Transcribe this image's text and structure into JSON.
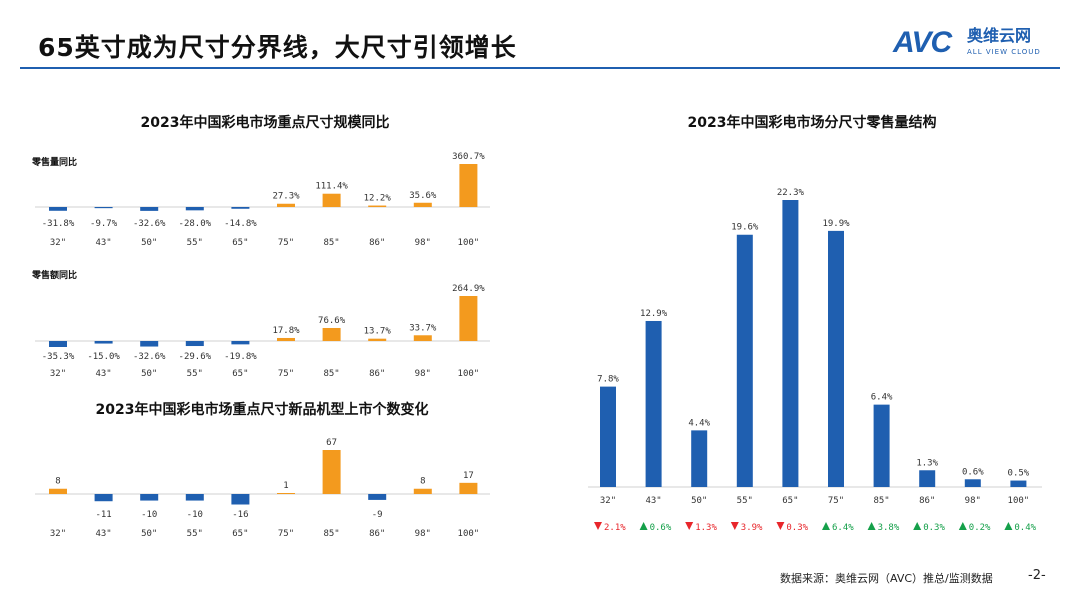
{
  "header": {
    "title": "65英寸成为尺寸分界线，大尺寸引领增长",
    "logo_mark": "AVC",
    "logo_cn": "奥维云网",
    "logo_en": "ALL VIEW CLOUD",
    "accent": "#1f5fb0"
  },
  "colors": {
    "negative_bar": "#1f5fb0",
    "positive_bar": "#f39a1e",
    "down": "#e8262b",
    "up": "#15a04a"
  },
  "chart_data": [
    {
      "type": "bar",
      "title": "2023年中国彩电市场重点尺寸规模同比",
      "subtitle": "零售量同比",
      "categories": [
        "32\"",
        "43\"",
        "50\"",
        "55\"",
        "65\"",
        "75\"",
        "85\"",
        "86\"",
        "98\"",
        "100\""
      ],
      "values": [
        -31.8,
        -9.7,
        -32.6,
        -28.0,
        -14.8,
        27.3,
        111.4,
        12.2,
        35.6,
        360.7
      ],
      "labels": [
        "-31.8%",
        "-9.7%",
        "-32.6%",
        "-28.0%",
        "-14.8%",
        "27.3%",
        "111.4%",
        "12.2%",
        "35.6%",
        "360.7%"
      ]
    },
    {
      "type": "bar",
      "subtitle": "零售额同比",
      "categories": [
        "32\"",
        "43\"",
        "50\"",
        "55\"",
        "65\"",
        "75\"",
        "85\"",
        "86\"",
        "98\"",
        "100\""
      ],
      "values": [
        -35.3,
        -15.0,
        -32.6,
        -29.6,
        -19.8,
        17.8,
        76.6,
        13.7,
        33.7,
        264.9
      ],
      "labels": [
        "-35.3%",
        "-15.0%",
        "-32.6%",
        "-29.6%",
        "-19.8%",
        "17.8%",
        "76.6%",
        "13.7%",
        "33.7%",
        "264.9%"
      ]
    },
    {
      "type": "bar",
      "title": "2023年中国彩电市场重点尺寸新品机型上市个数变化",
      "categories": [
        "32\"",
        "43\"",
        "50\"",
        "55\"",
        "65\"",
        "75\"",
        "85\"",
        "86\"",
        "98\"",
        "100\""
      ],
      "values": [
        8,
        -11,
        -10,
        -10,
        -16,
        1,
        67,
        -9,
        8,
        17
      ],
      "labels": [
        "8",
        "-11",
        "-10",
        "-10",
        "-16",
        "1",
        "67",
        "-9",
        "8",
        "17"
      ]
    },
    {
      "type": "bar",
      "title": "2023年中国彩电市场分尺寸零售量结构",
      "categories": [
        "32\"",
        "43\"",
        "50\"",
        "55\"",
        "65\"",
        "75\"",
        "85\"",
        "86\"",
        "98\"",
        "100\""
      ],
      "values": [
        7.8,
        12.9,
        4.4,
        19.6,
        22.3,
        19.9,
        6.4,
        1.3,
        0.6,
        0.5
      ],
      "labels": [
        "7.8%",
        "12.9%",
        "4.4%",
        "19.6%",
        "22.3%",
        "19.9%",
        "6.4%",
        "1.3%",
        "0.6%",
        "0.5%"
      ],
      "changes": [
        {
          "dir": "down",
          "text": "2.1%"
        },
        {
          "dir": "up",
          "text": "0.6%"
        },
        {
          "dir": "down",
          "text": "1.3%"
        },
        {
          "dir": "down",
          "text": "3.9%"
        },
        {
          "dir": "down",
          "text": "0.3%"
        },
        {
          "dir": "up",
          "text": "6.4%"
        },
        {
          "dir": "up",
          "text": "3.8%"
        },
        {
          "dir": "up",
          "text": "0.3%"
        },
        {
          "dir": "up",
          "text": "0.2%"
        },
        {
          "dir": "up",
          "text": "0.4%"
        }
      ]
    }
  ],
  "footer": {
    "source": "数据来源：奥维云网（AVC）推总/监测数据",
    "page": "-2-"
  }
}
